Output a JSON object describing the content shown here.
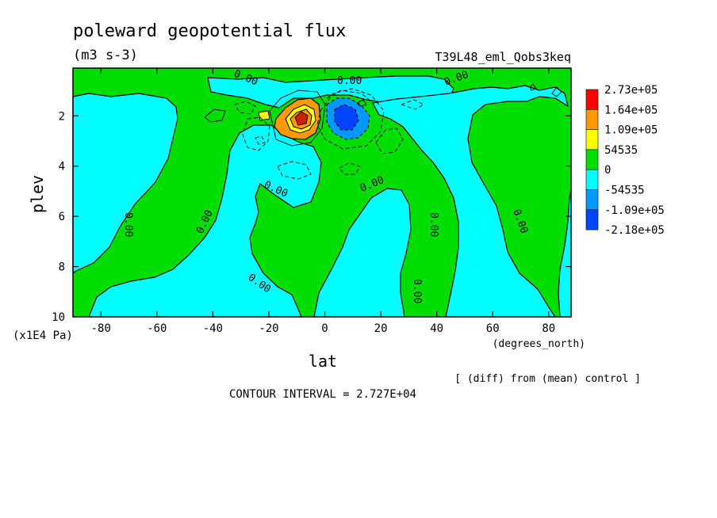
{
  "chart_data": {
    "type": "heatmap",
    "title": "poleward geopotential flux",
    "units": "(m3 s-3)",
    "run_label": "T39L48_eml_Qobs3keq",
    "xlabel": "lat",
    "x_unit": "(degrees_north)",
    "ylabel": "plev",
    "y_unit": "(x1E4 Pa)",
    "xlim": [
      -90,
      88
    ],
    "ylim": [
      10,
      0.1
    ],
    "x_ticks": [
      "-80",
      "-60",
      "-40",
      "-20",
      "0",
      "20",
      "40",
      "60",
      "80"
    ],
    "y_ticks": [
      "2",
      "4",
      "6",
      "8",
      "10"
    ],
    "legend_levels": [
      "2.73e+05",
      "1.64e+05",
      "1.09e+05",
      "54535",
      "0",
      "-54535",
      "-1.09e+05",
      "-2.18e+05"
    ],
    "legend_colors": [
      "#ff0000",
      "#ff9900",
      "#ffff00",
      "#00dd00",
      "#00ffff",
      "#0099ff",
      "#0044ff"
    ],
    "contour_labels": [
      "0.00",
      "0.00",
      "0.00",
      "0.00",
      "0.00",
      "0.00",
      "0.00",
      "0.00",
      "0.00",
      "0.00",
      "0.00",
      "0.00"
    ],
    "note": "[ (diff) from (mean) control ]",
    "contour_interval": "CONTOUR INTERVAL = 2.727E+04",
    "regions": [
      {
        "sign": "positive",
        "lat": -8,
        "plev": 2.0,
        "peak": 270000.0
      },
      {
        "sign": "negative",
        "lat": 8,
        "plev": 2.2,
        "peak": -220000.0
      }
    ]
  }
}
